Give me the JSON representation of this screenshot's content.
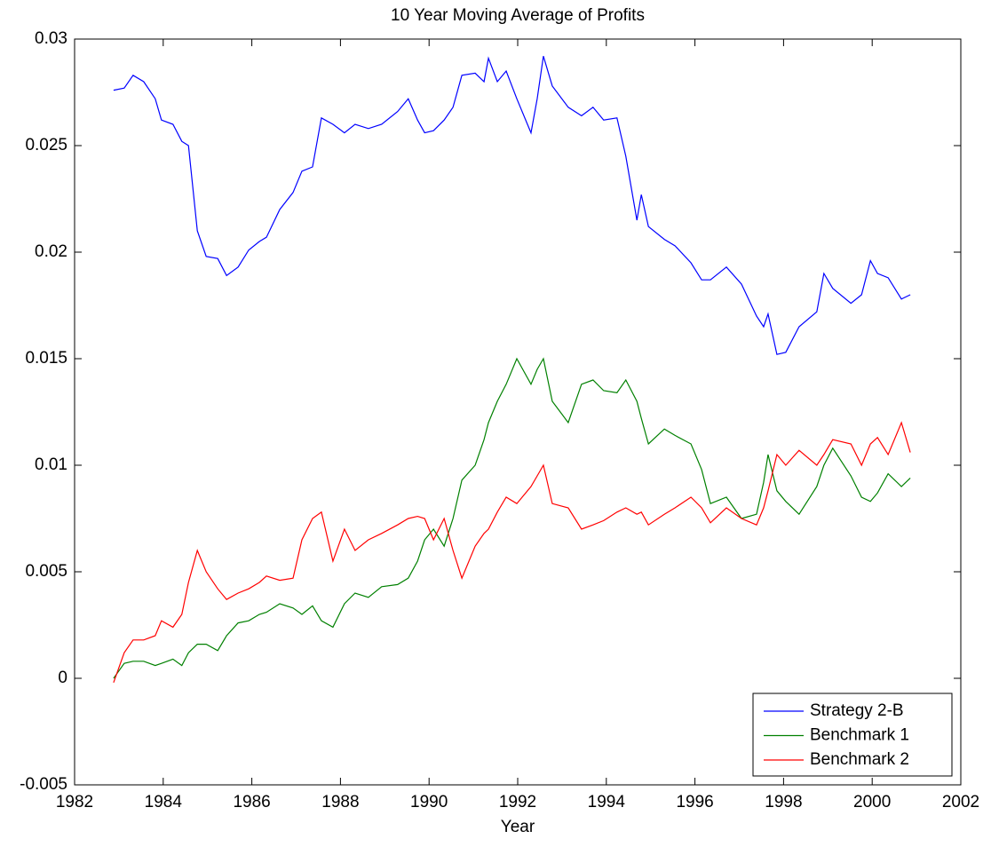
{
  "chart_data": {
    "type": "line",
    "title": "10 Year Moving Average of Profits",
    "x_label": "Year",
    "x": [
      1982.88,
      1983.12,
      1983.32,
      1983.56,
      1983.82,
      1983.96,
      1984.22,
      1984.42,
      1984.57,
      1984.77,
      1984.97,
      1985.23,
      1985.43,
      1985.69,
      1985.93,
      1986.17,
      1986.33,
      1986.63,
      1986.93,
      1987.13,
      1987.37,
      1987.57,
      1987.83,
      1988.09,
      1988.33,
      1988.63,
      1988.93,
      1989.29,
      1989.53,
      1989.74,
      1989.9,
      1990.1,
      1990.34,
      1990.54,
      1990.74,
      1991.04,
      1991.24,
      1991.34,
      1991.54,
      1991.74,
      1991.98,
      1992.3,
      1992.44,
      1992.58,
      1992.78,
      1993.14,
      1993.44,
      1993.7,
      1993.94,
      1994.24,
      1994.44,
      1994.69,
      1994.79,
      1994.95,
      1995.31,
      1995.55,
      1995.91,
      1996.15,
      1996.35,
      1996.71,
      1997.05,
      1997.39,
      1997.55,
      1997.65,
      1997.85,
      1998.05,
      1998.35,
      1998.75,
      1998.91,
      1999.11,
      1999.52,
      1999.76,
      1999.96,
      2000.12,
      2000.36,
      2000.66,
      2000.86
    ],
    "series": [
      {
        "name": "Strategy 2-B",
        "color": "#0000ff",
        "values": [
          0.0276,
          0.0277,
          0.0283,
          0.028,
          0.0272,
          0.0262,
          0.026,
          0.0252,
          0.025,
          0.021,
          0.0198,
          0.0197,
          0.0189,
          0.0193,
          0.0201,
          0.0205,
          0.0207,
          0.022,
          0.0228,
          0.0238,
          0.024,
          0.0263,
          0.026,
          0.0256,
          0.026,
          0.0258,
          0.026,
          0.0266,
          0.0272,
          0.0262,
          0.0256,
          0.0257,
          0.0262,
          0.0268,
          0.0283,
          0.0284,
          0.028,
          0.0291,
          0.028,
          0.0285,
          0.0272,
          0.0256,
          0.0272,
          0.0292,
          0.0278,
          0.0268,
          0.0264,
          0.0268,
          0.0262,
          0.0263,
          0.0245,
          0.0215,
          0.0227,
          0.0212,
          0.0206,
          0.0203,
          0.0195,
          0.0187,
          0.0187,
          0.0193,
          0.0185,
          0.017,
          0.0165,
          0.0171,
          0.0152,
          0.0153,
          0.0165,
          0.0172,
          0.019,
          0.0183,
          0.0176,
          0.018,
          0.0196,
          0.019,
          0.0188,
          0.0178,
          0.018
        ]
      },
      {
        "name": "Benchmark 1",
        "color": "#008000",
        "values": [
          0.0,
          0.0007,
          0.0008,
          0.0008,
          0.0006,
          0.0007,
          0.0009,
          0.0006,
          0.0012,
          0.0016,
          0.0016,
          0.0013,
          0.002,
          0.0026,
          0.0027,
          0.003,
          0.0031,
          0.0035,
          0.0033,
          0.003,
          0.0034,
          0.0027,
          0.0024,
          0.0035,
          0.004,
          0.0038,
          0.0043,
          0.0044,
          0.0047,
          0.0055,
          0.0065,
          0.007,
          0.0062,
          0.0075,
          0.0093,
          0.01,
          0.0112,
          0.012,
          0.013,
          0.0138,
          0.015,
          0.0138,
          0.0145,
          0.015,
          0.013,
          0.012,
          0.0138,
          0.014,
          0.0135,
          0.0134,
          0.014,
          0.013,
          0.0122,
          0.011,
          0.0117,
          0.0114,
          0.011,
          0.0098,
          0.0082,
          0.0085,
          0.0075,
          0.0077,
          0.0092,
          0.0105,
          0.0088,
          0.0083,
          0.0077,
          0.009,
          0.01,
          0.0108,
          0.0095,
          0.0085,
          0.0083,
          0.0087,
          0.0096,
          0.009,
          0.0094
        ]
      },
      {
        "name": "Benchmark 2",
        "color": "#ff0000",
        "values": [
          -0.0002,
          0.0012,
          0.0018,
          0.0018,
          0.002,
          0.0027,
          0.0024,
          0.003,
          0.0045,
          0.006,
          0.005,
          0.0042,
          0.0037,
          0.004,
          0.0042,
          0.0045,
          0.0048,
          0.0046,
          0.0047,
          0.0065,
          0.0075,
          0.0078,
          0.0055,
          0.007,
          0.006,
          0.0065,
          0.0068,
          0.0072,
          0.0075,
          0.0076,
          0.0075,
          0.0065,
          0.0075,
          0.006,
          0.0047,
          0.0062,
          0.0068,
          0.007,
          0.0078,
          0.0085,
          0.0082,
          0.009,
          0.0095,
          0.01,
          0.0082,
          0.008,
          0.007,
          0.0072,
          0.0074,
          0.0078,
          0.008,
          0.0077,
          0.0078,
          0.0072,
          0.0077,
          0.008,
          0.0085,
          0.008,
          0.0073,
          0.008,
          0.0075,
          0.0072,
          0.008,
          0.0088,
          0.0105,
          0.01,
          0.0107,
          0.01,
          0.0105,
          0.0112,
          0.011,
          0.01,
          0.011,
          0.0113,
          0.0105,
          0.012,
          0.0106
        ]
      }
    ],
    "xlim": [
      1982,
      2002
    ],
    "xticks": [
      1982,
      1984,
      1986,
      1988,
      1990,
      1992,
      1994,
      1996,
      1998,
      2000,
      2002
    ],
    "ylim": [
      -0.005,
      0.03
    ],
    "yticks": [
      -0.005,
      0,
      0.005,
      0.01,
      0.015,
      0.02,
      0.025,
      0.03
    ],
    "grid": false,
    "legend": "southeast"
  }
}
